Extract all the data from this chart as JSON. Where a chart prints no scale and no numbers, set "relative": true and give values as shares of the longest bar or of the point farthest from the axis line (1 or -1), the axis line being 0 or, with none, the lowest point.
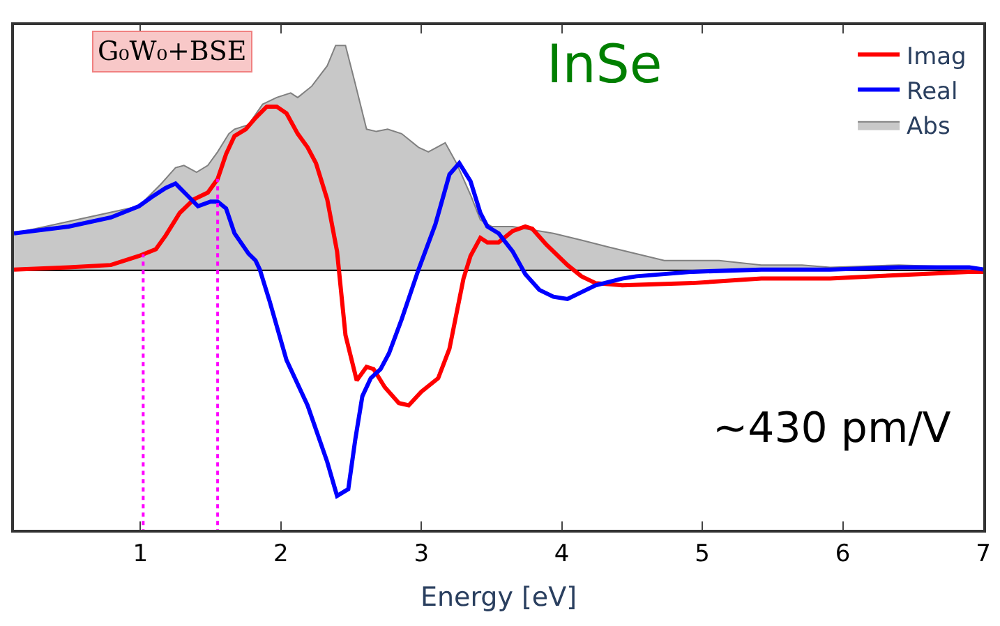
{
  "chart_data": {
    "type": "line",
    "relative": true,
    "xlabel": "Energy [eV]",
    "xlim": [
      0.1,
      7
    ],
    "xticks": [
      1,
      2,
      3,
      4,
      5,
      6,
      7
    ],
    "grid": false,
    "legend": "top right",
    "tick_labels": "x",
    "marker": "none",
    "line_style": "solid",
    "annotations": [
      "G₀W₀+BSE",
      "InSe",
      "~430 pm/V"
    ],
    "ref_lines": [
      {
        "axis": "x",
        "value": 1.02,
        "label": null,
        "color": "#ff00ff",
        "line_style": "dotted"
      },
      {
        "axis": "x",
        "value": 1.55,
        "label": null,
        "color": "#ff00ff",
        "line_style": "dotted"
      }
    ],
    "series": [
      {
        "name": "Imag",
        "color": "#ff0000",
        "x": [
          0.1,
          0.49,
          0.79,
          0.99,
          1.11,
          1.18,
          1.28,
          1.38,
          1.48,
          1.55,
          1.61,
          1.67,
          1.75,
          1.82,
          1.9,
          1.97,
          2.04,
          2.12,
          2.19,
          2.25,
          2.33,
          2.4,
          2.46,
          2.54,
          2.61,
          2.66,
          2.74,
          2.84,
          2.91,
          3.0,
          3.12,
          3.2,
          3.3,
          3.35,
          3.42,
          3.47,
          3.55,
          3.65,
          3.74,
          3.79,
          3.89,
          4.04,
          4.14,
          4.24,
          4.43,
          4.93,
          5.42,
          5.91,
          6.21,
          6.9,
          7.0
        ],
        "values": [
          0,
          0.01,
          0.02,
          0.06,
          0.09,
          0.15,
          0.25,
          0.31,
          0.34,
          0.4,
          0.51,
          0.59,
          0.62,
          0.67,
          0.72,
          0.72,
          0.69,
          0.6,
          0.54,
          0.47,
          0.31,
          0.08,
          -0.29,
          -0.49,
          -0.43,
          -0.44,
          -0.52,
          -0.59,
          -0.6,
          -0.54,
          -0.48,
          -0.35,
          -0.04,
          0.06,
          0.14,
          0.12,
          0.12,
          0.17,
          0.19,
          0.18,
          0.11,
          0.02,
          -0.03,
          -0.06,
          -0.07,
          -0.06,
          -0.04,
          -0.04,
          -0.03,
          -0.01,
          -0.01
        ]
      },
      {
        "name": "Real",
        "color": "#0000ff",
        "x": [
          0.1,
          0.49,
          0.79,
          0.99,
          1.08,
          1.18,
          1.25,
          1.33,
          1.41,
          1.5,
          1.55,
          1.61,
          1.67,
          1.77,
          1.82,
          1.85,
          1.92,
          2.04,
          2.19,
          2.33,
          2.4,
          2.48,
          2.53,
          2.58,
          2.64,
          2.71,
          2.77,
          2.86,
          2.98,
          3.1,
          3.2,
          3.27,
          3.35,
          3.42,
          3.47,
          3.55,
          3.65,
          3.74,
          3.84,
          3.94,
          4.04,
          4.14,
          4.24,
          4.43,
          4.53,
          4.93,
          5.42,
          5.91,
          6.4,
          6.9,
          7.0
        ],
        "values": [
          0.16,
          0.19,
          0.23,
          0.28,
          0.32,
          0.36,
          0.38,
          0.33,
          0.28,
          0.3,
          0.3,
          0.27,
          0.16,
          0.07,
          0.04,
          0,
          -0.14,
          -0.4,
          -0.6,
          -0.85,
          -1.0,
          -0.97,
          -0.75,
          -0.56,
          -0.48,
          -0.44,
          -0.37,
          -0.22,
          0,
          0.2,
          0.42,
          0.47,
          0.39,
          0.25,
          0.19,
          0.16,
          0.08,
          -0.02,
          -0.09,
          -0.12,
          -0.13,
          -0.1,
          -0.07,
          -0.04,
          -0.03,
          -0.01,
          0,
          0,
          0.01,
          0.01,
          0
        ]
      },
      {
        "name": "Abs",
        "type": "area",
        "color": "#c8c8c8",
        "x": [
          0.1,
          0.99,
          1.15,
          1.25,
          1.31,
          1.4,
          1.48,
          1.55,
          1.63,
          1.67,
          1.77,
          1.87,
          1.97,
          2.07,
          2.12,
          2.22,
          2.33,
          2.39,
          2.46,
          2.53,
          2.61,
          2.68,
          2.76,
          2.86,
          2.98,
          3.05,
          3.17,
          3.25,
          3.35,
          3.42,
          3.5,
          3.65,
          3.74,
          3.94,
          4.14,
          4.33,
          4.53,
          4.73,
          5.12,
          5.42,
          5.71,
          5.91,
          6.4,
          6.9,
          7.0
        ],
        "values": [
          0.16,
          0.28,
          0.38,
          0.45,
          0.46,
          0.43,
          0.46,
          0.52,
          0.6,
          0.62,
          0.64,
          0.73,
          0.76,
          0.78,
          0.76,
          0.81,
          0.9,
          0.99,
          0.99,
          0.82,
          0.62,
          0.61,
          0.62,
          0.6,
          0.54,
          0.52,
          0.56,
          0.47,
          0.33,
          0.22,
          0.19,
          0.19,
          0.18,
          0.16,
          0.13,
          0.1,
          0.07,
          0.04,
          0.04,
          0.02,
          0.02,
          0.01,
          0.02,
          0.01,
          0
        ]
      }
    ]
  }
}
